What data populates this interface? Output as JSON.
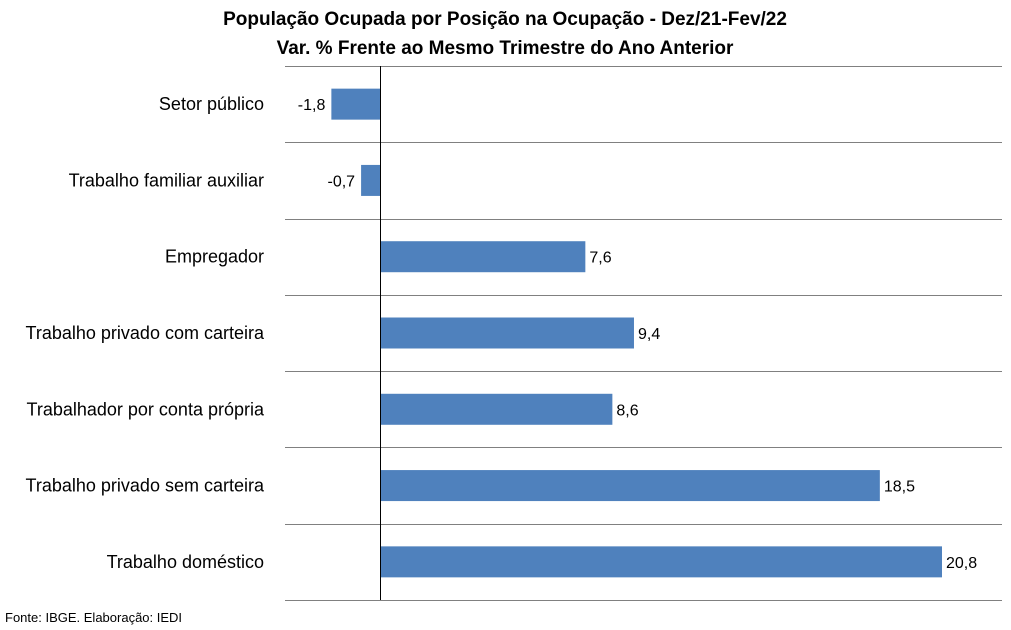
{
  "chart_data": {
    "type": "bar",
    "orientation": "horizontal",
    "title": "População Ocupada por Posição na Ocupação - Dez/21-Fev/22",
    "subtitle": "Var. % Frente ao Mesmo Trimestre do Ano Anterior",
    "xlabel": "",
    "ylabel": "",
    "categories": [
      "Setor público",
      "Trabalho familiar auxiliar",
      "Empregador",
      "Trabalho privado com carteira",
      "Trabalhador por conta própria",
      "Trabalho privado sem carteira",
      "Trabalho doméstico"
    ],
    "values": [
      -1.8,
      -0.7,
      7.6,
      9.4,
      8.6,
      18.5,
      20.8
    ],
    "value_labels": [
      "-1,8",
      "-0,7",
      "7,6",
      "9,4",
      "8,6",
      "18,5",
      "20,8"
    ],
    "xlim": [
      -4,
      23
    ],
    "grid": "horizontal",
    "legend": "none",
    "bar_color": "#4F81BD",
    "gridline_color": "#808080"
  },
  "footer": {
    "source": "Fonte: IBGE. Elaboração: IEDI"
  }
}
